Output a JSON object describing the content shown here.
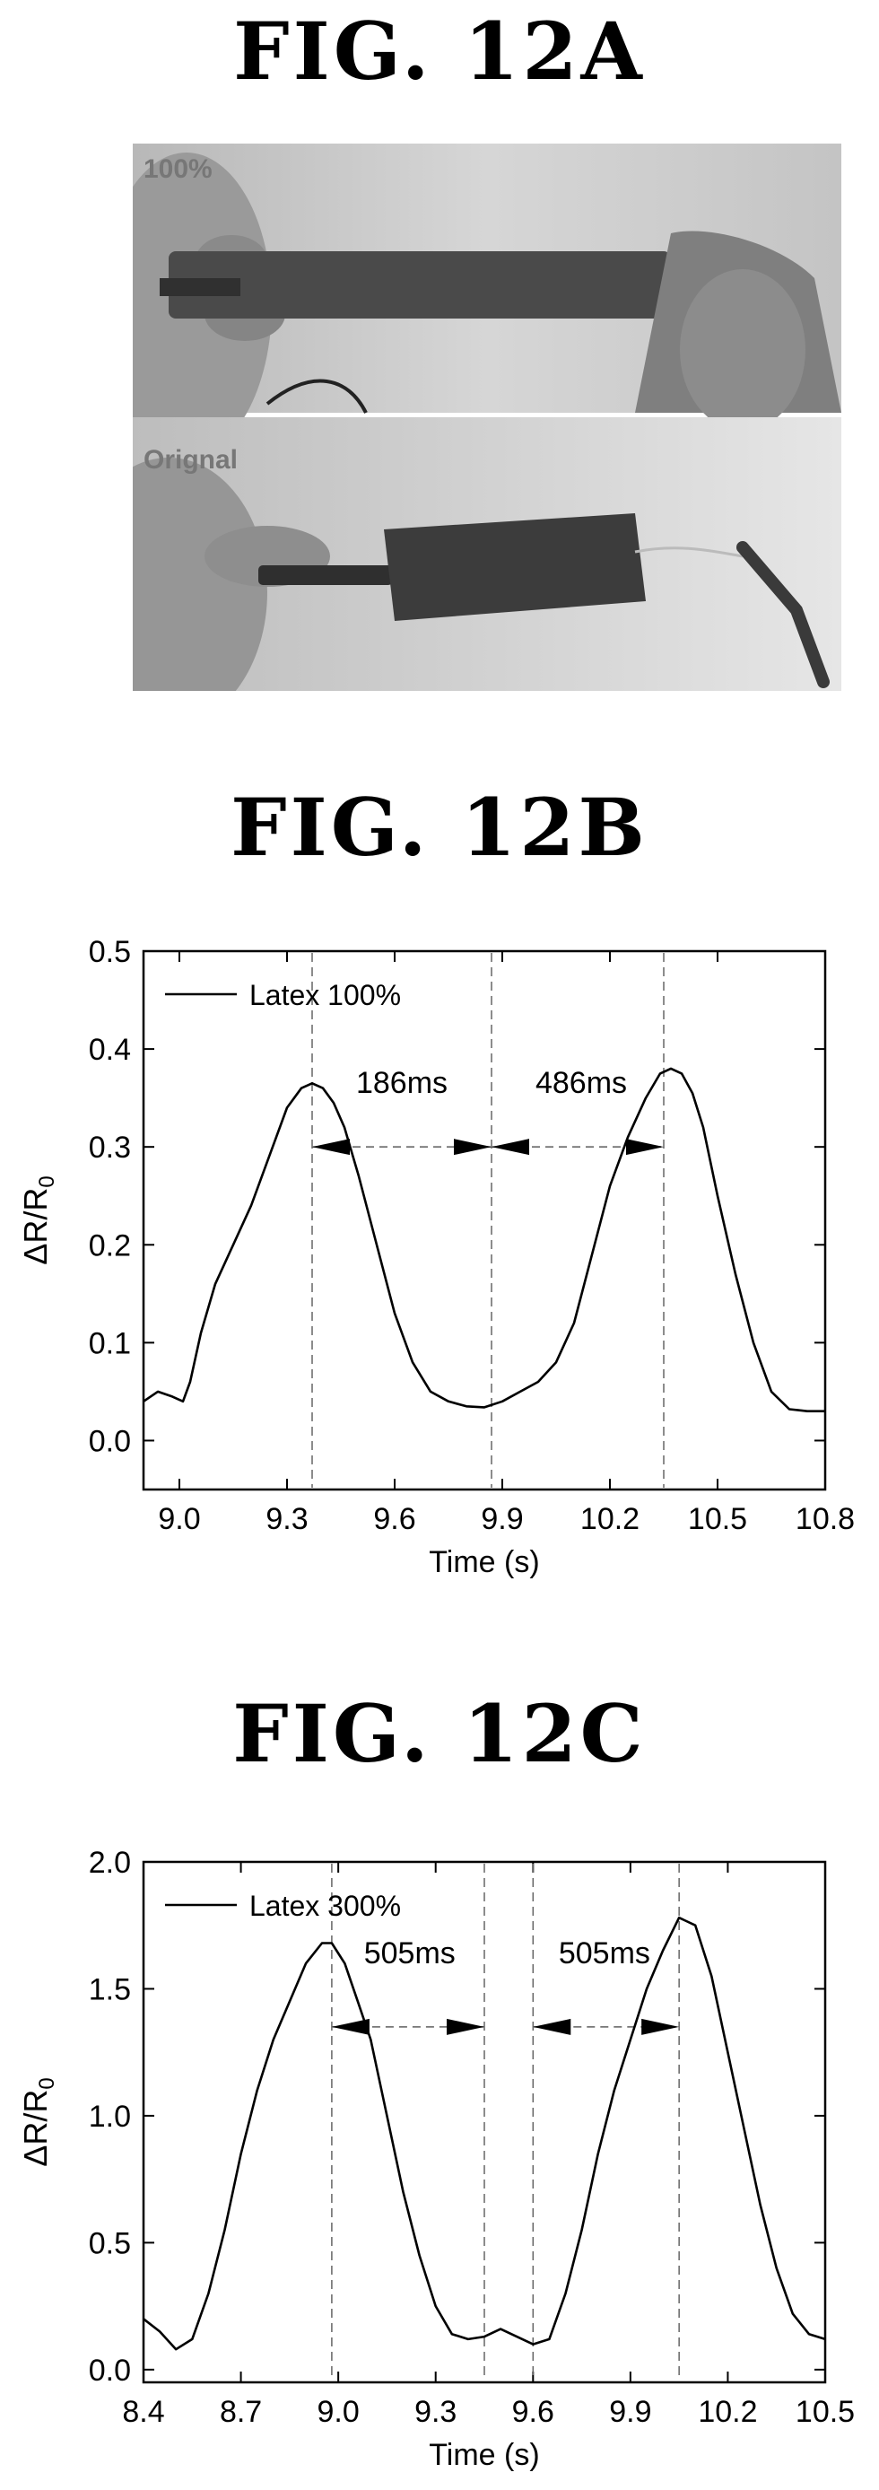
{
  "figures": {
    "a": {
      "label": "FIG. 12A",
      "top_caption": "100%",
      "bottom_caption": "Orignal"
    },
    "b": {
      "label": "FIG. 12B"
    },
    "c": {
      "label": "FIG. 12C"
    }
  },
  "chart_data": [
    {
      "type": "line",
      "xlabel": "Time (s)",
      "ylabel": "ΔR/R",
      "ylabel_sub": "0",
      "xlim": [
        8.9,
        10.8
      ],
      "ylim": [
        -0.05,
        0.5
      ],
      "xticks": [
        9.0,
        9.3,
        9.6,
        9.9,
        10.2,
        10.5,
        10.8
      ],
      "xtick_labels": [
        "9.0",
        "9.3",
        "9.6",
        "9.9",
        "10.2",
        "10.5",
        "10.8"
      ],
      "yticks": [
        0.0,
        0.1,
        0.2,
        0.3,
        0.4,
        0.5
      ],
      "ytick_labels": [
        "0.0",
        "0.1",
        "0.2",
        "0.3",
        "0.4",
        "0.5"
      ],
      "legend": {
        "position": "top-left",
        "entries": [
          "Latex 100%"
        ]
      },
      "series": [
        {
          "name": "Latex 100%",
          "x": [
            8.9,
            8.94,
            8.98,
            9.01,
            9.03,
            9.06,
            9.1,
            9.15,
            9.2,
            9.25,
            9.3,
            9.34,
            9.37,
            9.4,
            9.43,
            9.46,
            9.5,
            9.55,
            9.6,
            9.65,
            9.7,
            9.75,
            9.8,
            9.85,
            9.9,
            9.95,
            10.0,
            10.05,
            10.1,
            10.15,
            10.2,
            10.25,
            10.3,
            10.34,
            10.37,
            10.4,
            10.43,
            10.46,
            10.5,
            10.55,
            10.6,
            10.65,
            10.7,
            10.75,
            10.8
          ],
          "y": [
            0.04,
            0.05,
            0.045,
            0.04,
            0.06,
            0.11,
            0.16,
            0.2,
            0.24,
            0.29,
            0.34,
            0.36,
            0.365,
            0.36,
            0.345,
            0.32,
            0.27,
            0.2,
            0.13,
            0.08,
            0.05,
            0.04,
            0.035,
            0.034,
            0.04,
            0.05,
            0.06,
            0.08,
            0.12,
            0.19,
            0.26,
            0.31,
            0.35,
            0.375,
            0.38,
            0.375,
            0.355,
            0.32,
            0.25,
            0.17,
            0.1,
            0.05,
            0.032,
            0.03,
            0.03
          ]
        }
      ],
      "vlines": [
        9.37,
        9.87,
        10.35
      ],
      "annotations": [
        {
          "text": "186ms",
          "x": 9.62,
          "y": 0.355
        },
        {
          "text": "486ms",
          "x": 10.12,
          "y": 0.355
        }
      ],
      "arrows": [
        {
          "from": 9.37,
          "to": 9.87,
          "y": 0.3
        },
        {
          "from": 9.87,
          "to": 10.35,
          "y": 0.3
        }
      ]
    },
    {
      "type": "line",
      "xlabel": "Time (s)",
      "ylabel": "ΔR/R",
      "ylabel_sub": "0",
      "xlim": [
        8.4,
        10.5
      ],
      "ylim": [
        -0.05,
        2.0
      ],
      "xticks": [
        8.4,
        8.7,
        9.0,
        9.3,
        9.6,
        9.9,
        10.2,
        10.5
      ],
      "xtick_labels": [
        "8.4",
        "8.7",
        "9.0",
        "9.3",
        "9.6",
        "9.9",
        "10.2",
        "10.5"
      ],
      "yticks": [
        0.0,
        0.5,
        1.0,
        1.5,
        2.0
      ],
      "ytick_labels": [
        "0.0",
        "0.5",
        "1.0",
        "1.5",
        "2.0"
      ],
      "legend": {
        "position": "top-left",
        "entries": [
          "Latex 300%"
        ]
      },
      "series": [
        {
          "name": "Latex 300%",
          "x": [
            8.4,
            8.45,
            8.5,
            8.55,
            8.6,
            8.65,
            8.7,
            8.75,
            8.8,
            8.85,
            8.9,
            8.95,
            8.98,
            9.02,
            9.06,
            9.1,
            9.15,
            9.2,
            9.25,
            9.3,
            9.35,
            9.4,
            9.45,
            9.5,
            9.55,
            9.6,
            9.65,
            9.7,
            9.75,
            9.8,
            9.85,
            9.9,
            9.95,
            10.0,
            10.05,
            10.1,
            10.15,
            10.2,
            10.25,
            10.3,
            10.35,
            10.4,
            10.45,
            10.5
          ],
          "y": [
            0.2,
            0.15,
            0.08,
            0.12,
            0.3,
            0.55,
            0.85,
            1.1,
            1.3,
            1.45,
            1.6,
            1.68,
            1.68,
            1.6,
            1.45,
            1.3,
            1.0,
            0.7,
            0.45,
            0.25,
            0.14,
            0.12,
            0.13,
            0.16,
            0.13,
            0.1,
            0.12,
            0.3,
            0.55,
            0.85,
            1.1,
            1.3,
            1.5,
            1.65,
            1.78,
            1.75,
            1.55,
            1.25,
            0.95,
            0.65,
            0.4,
            0.22,
            0.14,
            0.12
          ]
        }
      ],
      "vlines": [
        8.98,
        9.45,
        9.6,
        10.05
      ],
      "annotations": [
        {
          "text": "505ms",
          "x": 9.22,
          "y": 1.6
        },
        {
          "text": "505ms",
          "x": 9.82,
          "y": 1.6
        }
      ],
      "arrows": [
        {
          "from": 8.98,
          "to": 9.45,
          "y": 1.35
        },
        {
          "from": 9.6,
          "to": 10.05,
          "y": 1.35
        }
      ]
    }
  ]
}
